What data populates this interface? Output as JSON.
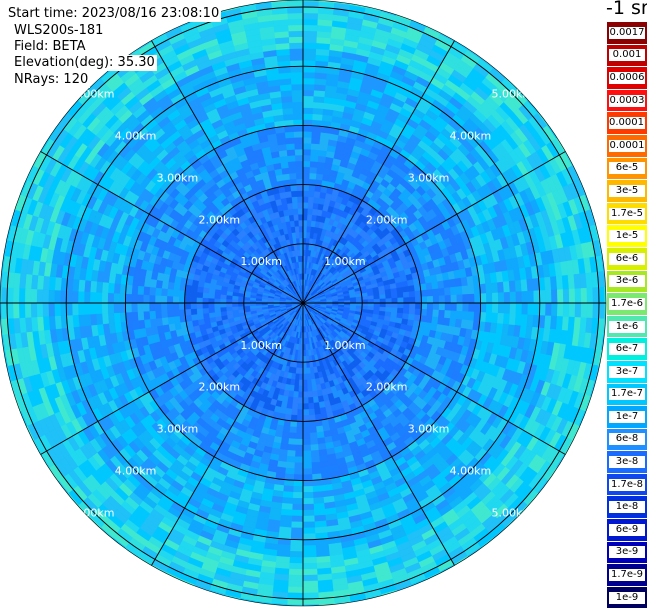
{
  "header": {
    "start_time": "Start time: 2023/08/16 23:08:10",
    "instrument": "WLS200s-181",
    "field": "Field: BETA",
    "elevation": "Elevation(deg): 35.30",
    "nrays": "NRays: 120"
  },
  "colorbar": {
    "title": "-1 sr",
    "ticks": [
      "0.0017",
      "0.001",
      "0.0006",
      "0.0003",
      "0.00017",
      "0.0001",
      "6e-5",
      "3e-5",
      "1.7e-5",
      "1e-5",
      "6e-6",
      "3e-6",
      "1.7e-6",
      "1e-6",
      "6e-7",
      "3e-7",
      "1.7e-7",
      "1e-7",
      "6e-8",
      "3e-8",
      "1.7e-8",
      "1e-8",
      "6e-9",
      "3e-9",
      "1.7e-9",
      "1e-9"
    ],
    "colors": [
      "#8b0000",
      "#c00000",
      "#e00000",
      "#ff1010",
      "#ff3a00",
      "#ff6a00",
      "#ff9400",
      "#ffb800",
      "#ffdc00",
      "#ffff00",
      "#d8f000",
      "#a8e820",
      "#7be870",
      "#4ee8b0",
      "#00f0e0",
      "#00e0ff",
      "#00c8ff",
      "#00a8ff",
      "#1e90ff",
      "#1a6cff",
      "#1048f0",
      "#0030e0",
      "#0018d0",
      "#0000b8",
      "#000090",
      "#000060"
    ]
  },
  "chart_data": {
    "type": "heatmap",
    "projection": "polar PPI",
    "field": "BETA",
    "units": "-1 sr",
    "n_rays": 120,
    "elevation_deg": 35.3,
    "max_range_km": 5.0,
    "range_ring_labels": [
      "1.00km",
      "2.00km",
      "3.00km",
      "4.00km",
      "5.00km"
    ],
    "range_rings_km": [
      1,
      2,
      3,
      4,
      5
    ],
    "azimuth_lines_deg": [
      0,
      30,
      60,
      90,
      120,
      150,
      180,
      210,
      240,
      270,
      300,
      330
    ],
    "grid": true,
    "approx_values_by_range": [
      {
        "range_km": "0-2",
        "beta": "1e-8 to 3e-8"
      },
      {
        "range_km": "2-3",
        "beta": "3e-8 to 6e-8"
      },
      {
        "range_km": "3-5",
        "beta": "6e-8 to 1e-7"
      },
      {
        "range_km": ">5",
        "beta": "1e-7 to 3e-7"
      }
    ]
  }
}
